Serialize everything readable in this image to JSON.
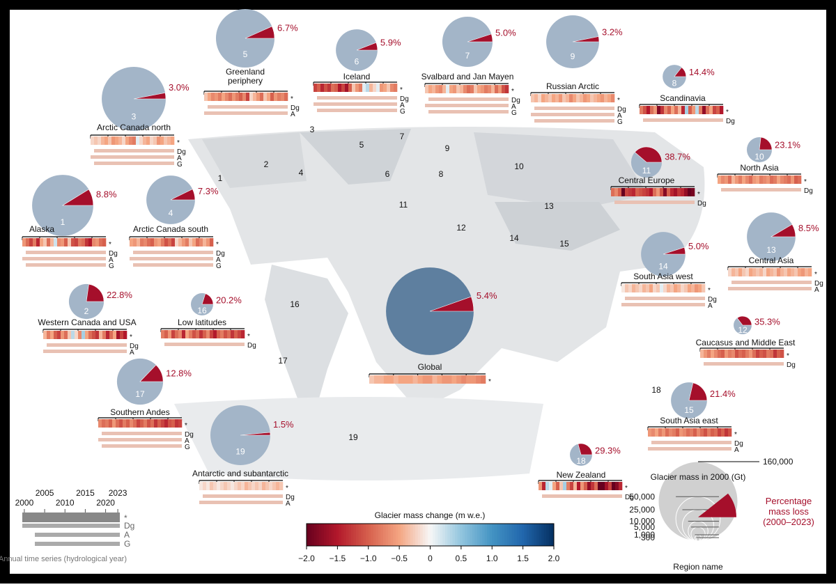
{
  "colorbar": {
    "title": "Glacier mass change (m w.e.)",
    "lim": [
      -2,
      2
    ],
    "ticks": [
      {
        "value": -2,
        "label": "−2.0"
      },
      {
        "value": -1.5,
        "label": "−1.5"
      },
      {
        "value": -1,
        "label": "−1.0"
      },
      {
        "value": -0.5,
        "label": "−0.5"
      },
      0,
      0.5,
      {
        "value": 1,
        "label": "1.0"
      },
      1.5,
      {
        "value": 2,
        "label": "2.0"
      }
    ]
  },
  "size_legend": {
    "title": "Glacier mass in 2000 (Gt)",
    "ticks": [
      {
        "value": 160000,
        "label": "160,000"
      },
      {
        "value": 50000,
        "label": "50,000"
      },
      {
        "value": 25000,
        "label": "25,000"
      },
      {
        "value": 10000,
        "label": "10,000"
      },
      {
        "value": 5000,
        "label": "5,000"
      },
      {
        "value": 1000,
        "label": "1,000"
      },
      300
    ],
    "loss_label": "Percentage mass loss (2000–2023)",
    "name_label": "Region name"
  },
  "time_legend": {
    "years": [
      2000,
      2005,
      2010,
      2015,
      2020,
      2023
    ],
    "rows": [
      "*",
      "Dg",
      "A",
      "G"
    ],
    "caption": "Annual time series (hydrological year)"
  },
  "regions": [
    {
      "number": "1",
      "name": "Alaska",
      "loss": 8.8,
      "loss_label": "8.8%",
      "mass": 95000,
      "rows": [
        "*",
        "Dg",
        "A",
        "G"
      ],
      "annual": [
        -0.6,
        -0.9,
        -1.2,
        -0.8,
        -1.4,
        -0.5,
        -0.3,
        -0.9,
        -0.4,
        0.2,
        -0.7,
        -0.6,
        -1.0,
        -0.3,
        -1.1,
        -1.2,
        -0.8,
        -0.9,
        -1.3,
        -1.5,
        -0.7,
        -0.6,
        -0.9,
        -1.0
      ]
    },
    {
      "number": "2",
      "name": "Western Canada and USA",
      "loss": 22.8,
      "loss_label": "22.8%",
      "mass": 31000,
      "rows": [
        "*",
        "Dg",
        "A"
      ],
      "annual": [
        -0.4,
        -0.8,
        -0.5,
        -1.0,
        -1.2,
        -0.6,
        -0.9,
        -0.3,
        0.3,
        -0.2,
        -0.7,
        0.4,
        -0.5,
        -0.9,
        -1.1,
        -1.3,
        -0.4,
        -0.8,
        -1.4,
        -0.9,
        -0.5,
        -1.6,
        -1.2,
        -1.5
      ]
    },
    {
      "number": "3",
      "name": "Arctic Canada north",
      "loss": 3.0,
      "loss_label": "3.0%",
      "mass": 104000,
      "rows": [
        "*",
        "Dg",
        "A",
        "G"
      ],
      "annual": [
        -0.2,
        -0.3,
        -0.2,
        -0.4,
        -0.5,
        -0.3,
        -0.6,
        -0.5,
        -0.4,
        -0.2,
        -0.5,
        -0.7,
        -0.8,
        0.1,
        -0.2,
        -0.4,
        -0.5,
        -0.2,
        -0.3,
        -0.6,
        -0.5,
        -0.3,
        -0.4,
        -0.5
      ]
    },
    {
      "number": "4",
      "name": "Arctic Canada south",
      "loss": 7.3,
      "loss_label": "7.3%",
      "mass": 60000,
      "rows": [
        "*",
        "Dg",
        "A",
        "G"
      ],
      "annual": [
        -0.5,
        -0.6,
        -0.4,
        -0.8,
        -0.7,
        -0.9,
        -1.0,
        -0.6,
        -0.5,
        -0.8,
        -1.1,
        -0.9,
        -1.2,
        -0.2,
        -0.4,
        -0.6,
        -0.8,
        -0.3,
        -0.5,
        -0.9,
        -0.7,
        -0.4,
        -0.6,
        -1.0
      ]
    },
    {
      "number": "5",
      "name": "Greenland periphery",
      "loss": 6.7,
      "loss_label": "6.7%",
      "mass": 87000,
      "rows": [
        "*",
        "Dg",
        "A"
      ],
      "annual": [
        -0.3,
        -0.5,
        -0.7,
        -0.6,
        -0.8,
        -0.5,
        -0.7,
        -0.9,
        -0.6,
        -0.8,
        -1.0,
        -0.7,
        -1.2,
        -0.2,
        -0.4,
        -0.6,
        -0.9,
        -0.3,
        -0.5,
        -1.0,
        -0.6,
        -0.8,
        -0.7,
        -0.9
      ]
    },
    {
      "number": "6",
      "name": "Iceland",
      "loss": 5.9,
      "loss_label": "5.9%",
      "mass": 44000,
      "rows": [
        "*",
        "Dg",
        "A",
        "G"
      ],
      "annual": [
        -1.2,
        -1.0,
        -1.4,
        -1.1,
        -1.3,
        -0.9,
        -1.0,
        -1.5,
        -1.2,
        -1.6,
        -1.0,
        -0.3,
        -0.6,
        -0.8,
        0.1,
        0.3,
        -0.4,
        -0.2,
        0.1,
        -0.6,
        -0.5,
        -0.3,
        -0.7,
        -0.8
      ]
    },
    {
      "number": "7",
      "name": "Svalbard and Jan Mayen",
      "loss": 5.0,
      "loss_label": "5.0%",
      "mass": 64000,
      "rows": [
        "*",
        "Dg",
        "A",
        "G"
      ],
      "annual": [
        -0.3,
        -0.5,
        -0.4,
        -0.6,
        -0.7,
        -0.4,
        0.1,
        -0.5,
        -0.6,
        -0.3,
        -0.4,
        -0.7,
        -0.9,
        -0.8,
        -0.3,
        -0.5,
        -0.6,
        -0.8,
        -0.7,
        -0.4,
        -0.9,
        -0.6,
        -1.1,
        -1.3
      ]
    },
    {
      "number": "8",
      "name": "Scandinavia",
      "loss": 14.4,
      "loss_label": "14.4%",
      "mass": 14000,
      "rows": [
        "*",
        "Dg"
      ],
      "annual": [
        -0.8,
        -1.1,
        -1.5,
        -0.9,
        -0.6,
        -1.8,
        -1.3,
        -0.7,
        -1.0,
        -0.5,
        -0.9,
        -0.4,
        -1.4,
        0.4,
        -1.0,
        -0.6,
        0.3,
        -0.8,
        -1.7,
        -0.9,
        -0.5,
        -1.2,
        -1.0,
        -1.5
      ]
    },
    {
      "number": "9",
      "name": "Russian Arctic",
      "loss": 3.2,
      "loss_label": "3.2%",
      "mass": 71000,
      "rows": [
        "*",
        "Dg",
        "A",
        "G"
      ],
      "annual": [
        -0.3,
        -0.4,
        -0.2,
        -0.5,
        -0.4,
        -0.3,
        -0.5,
        -0.4,
        -0.6,
        -0.3,
        -0.4,
        -0.7,
        -0.5,
        -0.3,
        -0.4,
        -0.6,
        -0.5,
        -0.3,
        -0.4,
        -0.5,
        -0.6,
        -0.4,
        -0.5,
        -0.7
      ]
    },
    {
      "number": "10",
      "name": "North Asia",
      "loss": 23.1,
      "loss_label": "23.1%",
      "mass": 16000,
      "rows": [
        "*",
        "Dg"
      ],
      "annual": [
        -0.5,
        -0.7,
        -0.6,
        -0.9,
        -0.4,
        -0.6,
        -0.8,
        -0.5,
        -0.7,
        -0.9,
        -0.6,
        -0.5,
        -0.8,
        -0.7,
        -0.6,
        -0.9,
        -0.8,
        -0.5,
        -0.7,
        -0.8,
        -0.9,
        -0.6,
        -1.0,
        -0.9
      ]
    },
    {
      "number": "11",
      "name": "Central Europe",
      "loss": 38.7,
      "loss_label": "38.7%",
      "mass": 24000,
      "rows": [
        "*",
        "Dg"
      ],
      "annual": [
        -0.9,
        -0.7,
        -1.0,
        -2.0,
        -1.2,
        -1.3,
        -1.4,
        -1.0,
        -1.1,
        -1.2,
        -1.3,
        -1.5,
        -0.9,
        -0.6,
        -1.1,
        -1.8,
        -1.0,
        -1.4,
        -1.6,
        -1.3,
        -1.4,
        -1.7,
        -2.0,
        -1.9
      ]
    },
    {
      "number": "12",
      "name": "Caucasus and Middle East",
      "loss": 35.3,
      "loss_label": "35.3%",
      "mass": 8300,
      "rows": [
        "*",
        "Dg"
      ],
      "annual": [
        -0.4,
        -0.6,
        -0.8,
        -0.5,
        -0.7,
        -0.9,
        -1.0,
        -0.6,
        -0.8,
        -0.7,
        -1.1,
        -0.9,
        -1.0,
        -0.8,
        -0.6,
        -0.9,
        -1.2,
        -1.0,
        -1.1,
        -0.8,
        -0.9,
        -1.3,
        -1.0,
        -1.1
      ]
    },
    {
      "number": "13",
      "name": "Central Asia",
      "loss": 8.5,
      "loss_label": "8.5%",
      "mass": 60000,
      "rows": [
        "*",
        "Dg",
        "A"
      ],
      "annual": [
        -0.2,
        -0.4,
        -0.3,
        -0.5,
        -0.3,
        -0.2,
        -0.5,
        -0.4,
        -0.3,
        -0.4,
        -0.2,
        -0.5,
        -0.4,
        -0.3,
        -0.6,
        -0.4,
        -0.3,
        -0.5,
        -0.4,
        -0.3,
        -0.5,
        -0.6,
        -0.4,
        -0.5
      ]
    },
    {
      "number": "14",
      "name": "South Asia west",
      "loss": 5.0,
      "loss_label": "5.0%",
      "mass": 50000,
      "rows": [
        "*",
        "Dg",
        "A"
      ],
      "annual": [
        -0.1,
        -0.3,
        -0.2,
        -0.4,
        -0.3,
        -0.2,
        -0.4,
        -0.3,
        -0.5,
        -0.2,
        -0.3,
        0.1,
        -0.2,
        -0.4,
        -0.3,
        -0.5,
        -0.4,
        -0.2,
        -0.3,
        -0.5,
        -0.4,
        -0.6,
        -0.5,
        -0.3
      ]
    },
    {
      "number": "15",
      "name": "South Asia east",
      "loss": 21.4,
      "loss_label": "21.4%",
      "mass": 33000,
      "rows": [
        "*",
        "Dg",
        "A"
      ],
      "annual": [
        -0.6,
        -0.7,
        -0.5,
        -0.8,
        -0.6,
        -0.9,
        -0.7,
        -0.8,
        -1.0,
        -0.6,
        -0.7,
        -0.9,
        -0.8,
        -1.0,
        -0.7,
        -0.9,
        -1.1,
        -0.8,
        -1.0,
        -0.9,
        -1.2,
        -1.0,
        -1.3,
        -1.1
      ]
    },
    {
      "number": "16",
      "name": "Low latitudes",
      "loss": 20.2,
      "loss_label": "20.2%",
      "mass": 12600,
      "rows": [
        "*",
        "Dg"
      ],
      "annual": [
        -0.8,
        -1.0,
        -0.6,
        -1.2,
        -0.9,
        -0.7,
        -1.4,
        -0.5,
        -0.8,
        -1.1,
        -0.9,
        -1.3,
        -1.0,
        -0.7,
        -1.2,
        -1.5,
        -1.0,
        -0.8,
        -1.1,
        -0.9,
        -1.3,
        -1.0,
        -1.2,
        -1.4
      ]
    },
    {
      "number": "17",
      "name": "Southern Andes",
      "loss": 12.8,
      "loss_label": "12.8%",
      "mass": 54000,
      "rows": [
        "*",
        "Dg",
        "A",
        "G"
      ],
      "annual": [
        -0.7,
        -0.9,
        -0.8,
        -1.0,
        -0.6,
        -0.9,
        -1.1,
        -0.8,
        -1.0,
        -0.7,
        -0.9,
        -1.2,
        -1.0,
        -0.8,
        -1.1,
        -0.9,
        -1.3,
        -1.0,
        -1.2,
        -1.4,
        -1.1,
        -1.0,
        -1.3,
        -1.2
      ]
    },
    {
      "number": "18",
      "name": "New Zealand",
      "loss": 29.3,
      "loss_label": "29.3%",
      "mass": 12600,
      "rows": [
        "*",
        "Dg"
      ],
      "annual": [
        -0.6,
        -1.4,
        0.3,
        0.1,
        -0.5,
        -1.0,
        -0.3,
        0.4,
        -0.8,
        -1.2,
        -0.4,
        -1.5,
        -0.6,
        -1.0,
        -1.7,
        -1.3,
        -0.9,
        -2.0,
        -2.0,
        -1.6,
        -1.2,
        -2.0,
        -1.8,
        -1.4
      ]
    },
    {
      "number": "19",
      "name": "Antarctic and subantarctic",
      "loss": 1.5,
      "loss_label": "1.5%",
      "mass": 91000,
      "rows": [
        "*",
        "Dg",
        "A"
      ],
      "annual": [
        -0.1,
        -0.2,
        -0.1,
        -0.3,
        -0.2,
        -0.1,
        -0.2,
        -0.3,
        -0.2,
        -0.1,
        -0.2,
        -0.3,
        -0.2,
        -0.4,
        -0.3,
        -0.2,
        -0.3,
        -0.2,
        -0.4,
        -0.3,
        -0.2,
        -0.3,
        -0.4,
        -0.3
      ]
    }
  ],
  "global": {
    "name": "Global",
    "loss": 5.4,
    "loss_label": "5.4%",
    "mass": 195000,
    "rows": [
      "*"
    ],
    "annual": [
      -0.3,
      -0.4,
      -0.4,
      -0.5,
      -0.5,
      -0.4,
      -0.5,
      -0.5,
      -0.5,
      -0.4,
      -0.5,
      -0.6,
      -0.6,
      -0.4,
      -0.5,
      -0.6,
      -0.6,
      -0.5,
      -0.6,
      -0.7,
      -0.6,
      -0.6,
      -0.7,
      -0.8
    ]
  }
}
